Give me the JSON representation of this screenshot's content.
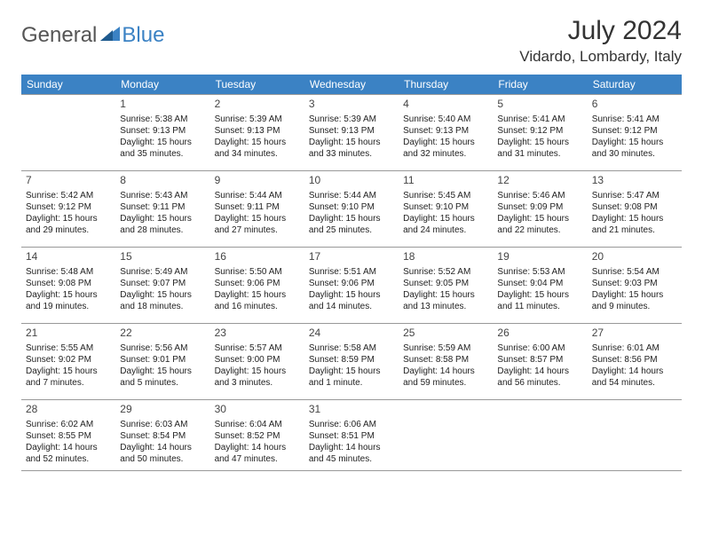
{
  "logo": {
    "general": "General",
    "blue": "Blue"
  },
  "title": "July 2024",
  "location": "Vidardo, Lombardy, Italy",
  "colors": {
    "header_bg": "#3b82c4",
    "header_text": "#ffffff",
    "border": "#999999",
    "text": "#222222",
    "logo_gray": "#555555",
    "logo_blue": "#3b82c4"
  },
  "daynames": [
    "Sunday",
    "Monday",
    "Tuesday",
    "Wednesday",
    "Thursday",
    "Friday",
    "Saturday"
  ],
  "weeks": [
    [
      {
        "n": "",
        "sr": "",
        "ss": "",
        "dl": ""
      },
      {
        "n": "1",
        "sr": "Sunrise: 5:38 AM",
        "ss": "Sunset: 9:13 PM",
        "dl": "Daylight: 15 hours and 35 minutes."
      },
      {
        "n": "2",
        "sr": "Sunrise: 5:39 AM",
        "ss": "Sunset: 9:13 PM",
        "dl": "Daylight: 15 hours and 34 minutes."
      },
      {
        "n": "3",
        "sr": "Sunrise: 5:39 AM",
        "ss": "Sunset: 9:13 PM",
        "dl": "Daylight: 15 hours and 33 minutes."
      },
      {
        "n": "4",
        "sr": "Sunrise: 5:40 AM",
        "ss": "Sunset: 9:13 PM",
        "dl": "Daylight: 15 hours and 32 minutes."
      },
      {
        "n": "5",
        "sr": "Sunrise: 5:41 AM",
        "ss": "Sunset: 9:12 PM",
        "dl": "Daylight: 15 hours and 31 minutes."
      },
      {
        "n": "6",
        "sr": "Sunrise: 5:41 AM",
        "ss": "Sunset: 9:12 PM",
        "dl": "Daylight: 15 hours and 30 minutes."
      }
    ],
    [
      {
        "n": "7",
        "sr": "Sunrise: 5:42 AM",
        "ss": "Sunset: 9:12 PM",
        "dl": "Daylight: 15 hours and 29 minutes."
      },
      {
        "n": "8",
        "sr": "Sunrise: 5:43 AM",
        "ss": "Sunset: 9:11 PM",
        "dl": "Daylight: 15 hours and 28 minutes."
      },
      {
        "n": "9",
        "sr": "Sunrise: 5:44 AM",
        "ss": "Sunset: 9:11 PM",
        "dl": "Daylight: 15 hours and 27 minutes."
      },
      {
        "n": "10",
        "sr": "Sunrise: 5:44 AM",
        "ss": "Sunset: 9:10 PM",
        "dl": "Daylight: 15 hours and 25 minutes."
      },
      {
        "n": "11",
        "sr": "Sunrise: 5:45 AM",
        "ss": "Sunset: 9:10 PM",
        "dl": "Daylight: 15 hours and 24 minutes."
      },
      {
        "n": "12",
        "sr": "Sunrise: 5:46 AM",
        "ss": "Sunset: 9:09 PM",
        "dl": "Daylight: 15 hours and 22 minutes."
      },
      {
        "n": "13",
        "sr": "Sunrise: 5:47 AM",
        "ss": "Sunset: 9:08 PM",
        "dl": "Daylight: 15 hours and 21 minutes."
      }
    ],
    [
      {
        "n": "14",
        "sr": "Sunrise: 5:48 AM",
        "ss": "Sunset: 9:08 PM",
        "dl": "Daylight: 15 hours and 19 minutes."
      },
      {
        "n": "15",
        "sr": "Sunrise: 5:49 AM",
        "ss": "Sunset: 9:07 PM",
        "dl": "Daylight: 15 hours and 18 minutes."
      },
      {
        "n": "16",
        "sr": "Sunrise: 5:50 AM",
        "ss": "Sunset: 9:06 PM",
        "dl": "Daylight: 15 hours and 16 minutes."
      },
      {
        "n": "17",
        "sr": "Sunrise: 5:51 AM",
        "ss": "Sunset: 9:06 PM",
        "dl": "Daylight: 15 hours and 14 minutes."
      },
      {
        "n": "18",
        "sr": "Sunrise: 5:52 AM",
        "ss": "Sunset: 9:05 PM",
        "dl": "Daylight: 15 hours and 13 minutes."
      },
      {
        "n": "19",
        "sr": "Sunrise: 5:53 AM",
        "ss": "Sunset: 9:04 PM",
        "dl": "Daylight: 15 hours and 11 minutes."
      },
      {
        "n": "20",
        "sr": "Sunrise: 5:54 AM",
        "ss": "Sunset: 9:03 PM",
        "dl": "Daylight: 15 hours and 9 minutes."
      }
    ],
    [
      {
        "n": "21",
        "sr": "Sunrise: 5:55 AM",
        "ss": "Sunset: 9:02 PM",
        "dl": "Daylight: 15 hours and 7 minutes."
      },
      {
        "n": "22",
        "sr": "Sunrise: 5:56 AM",
        "ss": "Sunset: 9:01 PM",
        "dl": "Daylight: 15 hours and 5 minutes."
      },
      {
        "n": "23",
        "sr": "Sunrise: 5:57 AM",
        "ss": "Sunset: 9:00 PM",
        "dl": "Daylight: 15 hours and 3 minutes."
      },
      {
        "n": "24",
        "sr": "Sunrise: 5:58 AM",
        "ss": "Sunset: 8:59 PM",
        "dl": "Daylight: 15 hours and 1 minute."
      },
      {
        "n": "25",
        "sr": "Sunrise: 5:59 AM",
        "ss": "Sunset: 8:58 PM",
        "dl": "Daylight: 14 hours and 59 minutes."
      },
      {
        "n": "26",
        "sr": "Sunrise: 6:00 AM",
        "ss": "Sunset: 8:57 PM",
        "dl": "Daylight: 14 hours and 56 minutes."
      },
      {
        "n": "27",
        "sr": "Sunrise: 6:01 AM",
        "ss": "Sunset: 8:56 PM",
        "dl": "Daylight: 14 hours and 54 minutes."
      }
    ],
    [
      {
        "n": "28",
        "sr": "Sunrise: 6:02 AM",
        "ss": "Sunset: 8:55 PM",
        "dl": "Daylight: 14 hours and 52 minutes."
      },
      {
        "n": "29",
        "sr": "Sunrise: 6:03 AM",
        "ss": "Sunset: 8:54 PM",
        "dl": "Daylight: 14 hours and 50 minutes."
      },
      {
        "n": "30",
        "sr": "Sunrise: 6:04 AM",
        "ss": "Sunset: 8:52 PM",
        "dl": "Daylight: 14 hours and 47 minutes."
      },
      {
        "n": "31",
        "sr": "Sunrise: 6:06 AM",
        "ss": "Sunset: 8:51 PM",
        "dl": "Daylight: 14 hours and 45 minutes."
      },
      {
        "n": "",
        "sr": "",
        "ss": "",
        "dl": ""
      },
      {
        "n": "",
        "sr": "",
        "ss": "",
        "dl": ""
      },
      {
        "n": "",
        "sr": "",
        "ss": "",
        "dl": ""
      }
    ]
  ]
}
